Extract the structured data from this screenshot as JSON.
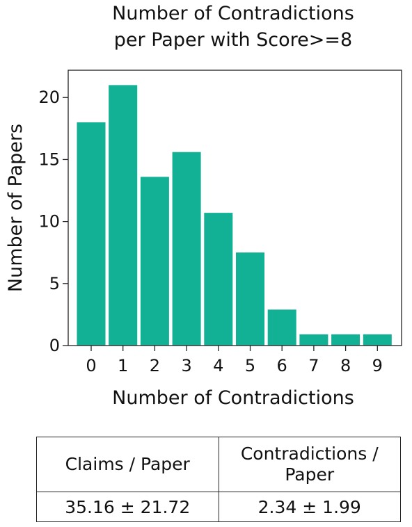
{
  "chart_data": {
    "type": "bar",
    "title_lines": [
      "Number of Contradictions",
      "per Paper with Score>=8"
    ],
    "categories": [
      "0",
      "1",
      "2",
      "3",
      "4",
      "5",
      "6",
      "7",
      "8",
      "9"
    ],
    "values": [
      18,
      21,
      13.6,
      15.6,
      10.7,
      7.5,
      2.9,
      0.9,
      0.9,
      0.9
    ],
    "xlabel": "Number of Contradictions",
    "ylabel": "Number of Papers",
    "ylim": [
      0,
      22.2
    ],
    "yticks": [
      "0",
      "5",
      "10",
      "15",
      "20"
    ],
    "bar_color": "#12b094",
    "grid": false
  },
  "table": {
    "headers": [
      "Claims / Paper",
      "Contradictions / Paper"
    ],
    "values": [
      "35.16 ± 21.72",
      "2.34 ± 1.99"
    ]
  }
}
